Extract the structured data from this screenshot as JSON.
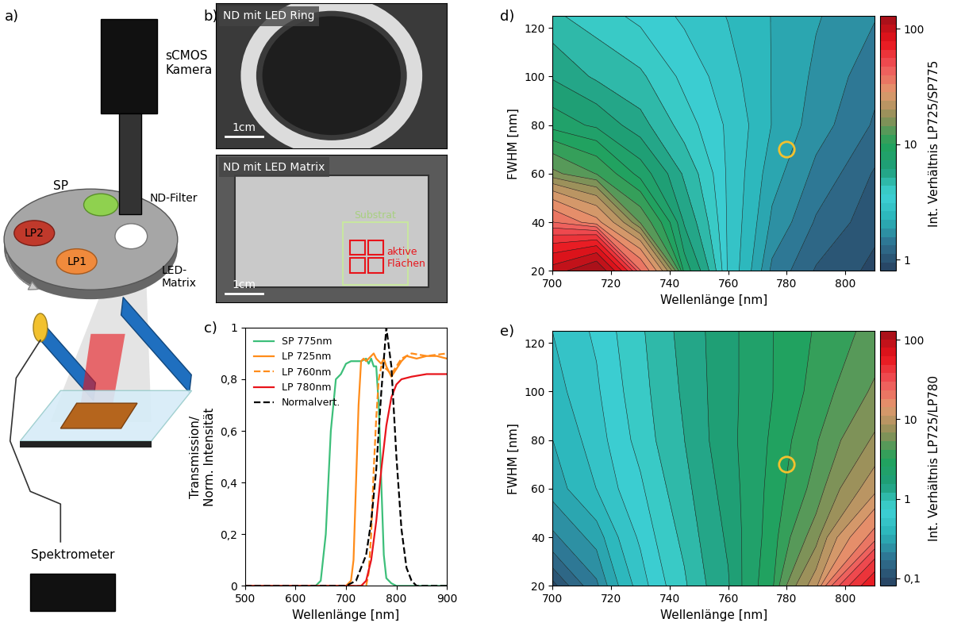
{
  "diagram": {
    "panel": "a)",
    "labels": {
      "camera": "sCMOS\nKamera",
      "sp": "SP",
      "lp2": "LP2",
      "lp1": "LP1",
      "nd": "ND-Filter",
      "led": "LED-\nMatrix",
      "spectrometer": "Spektrometer"
    }
  },
  "images": {
    "panel": "b)",
    "top": {
      "title": "ND mit LED Ring",
      "scale": "1cm"
    },
    "bottom": {
      "title": "ND mit LED Matrix",
      "scale": "1cm",
      "substrate": "Substrat",
      "active": "aktive\nFlächen"
    }
  },
  "chart_data": [
    {
      "panel": "c)",
      "type": "line",
      "xlabel": "Wellenlänge [nm]",
      "ylabel": "Transmission/\nNorm. Intensität",
      "xlim": [
        500,
        900
      ],
      "xticks": [
        500,
        600,
        700,
        800,
        900
      ],
      "ylim": [
        0,
        1
      ],
      "yticks": [
        0,
        {
          "value": 0.2,
          "label": "0,2"
        },
        {
          "value": 0.4,
          "label": "0,4"
        },
        {
          "value": 0.6,
          "label": "0,6"
        },
        {
          "value": 0.8,
          "label": "0,8"
        },
        1
      ],
      "legend": "upper left",
      "grid": false,
      "series": [
        {
          "name": "SP 775nm",
          "color": "#3dbf7a",
          "line_style": "solid",
          "x": [
            500,
            640,
            650,
            660,
            670,
            680,
            690,
            700,
            710,
            720,
            730,
            740,
            745,
            750,
            755,
            760,
            765,
            770,
            775,
            780,
            790,
            800,
            900
          ],
          "values": [
            0,
            0,
            0.02,
            0.2,
            0.6,
            0.8,
            0.82,
            0.86,
            0.87,
            0.87,
            0.87,
            0.88,
            0.86,
            0.88,
            0.85,
            0.85,
            0.7,
            0.4,
            0.12,
            0.03,
            0.01,
            0,
            0
          ]
        },
        {
          "name": "LP 725nm",
          "color": "#ff8c1a",
          "line_style": "solid",
          "x": [
            500,
            700,
            710,
            715,
            720,
            725,
            730,
            735,
            740,
            745,
            750,
            755,
            760,
            765,
            770,
            775,
            780,
            790,
            800,
            810,
            820,
            840,
            860,
            880,
            900
          ],
          "values": [
            0,
            0,
            0.02,
            0.1,
            0.4,
            0.7,
            0.87,
            0.88,
            0.87,
            0.88,
            0.89,
            0.9,
            0.88,
            0.87,
            0.86,
            0.88,
            0.85,
            0.81,
            0.84,
            0.87,
            0.89,
            0.88,
            0.89,
            0.89,
            0.88
          ]
        },
        {
          "name": "LP 760nm",
          "color": "#ff8c1a",
          "line_style": "dashed",
          "x": [
            500,
            740,
            745,
            750,
            755,
            760,
            765,
            770,
            780,
            790,
            800,
            810,
            830,
            860,
            900
          ],
          "values": [
            0,
            0,
            0.05,
            0.2,
            0.45,
            0.65,
            0.8,
            0.85,
            0.84,
            0.82,
            0.85,
            0.88,
            0.9,
            0.89,
            0.9
          ]
        },
        {
          "name": "LP 780nm",
          "color": "#e8141b",
          "line_style": "solid",
          "x": [
            500,
            730,
            740,
            750,
            760,
            770,
            780,
            790,
            800,
            810,
            830,
            860,
            900
          ],
          "values": [
            0,
            0,
            0.02,
            0.1,
            0.25,
            0.45,
            0.62,
            0.73,
            0.78,
            0.8,
            0.81,
            0.82,
            0.82
          ]
        },
        {
          "name": "Normalvert.",
          "color": "#000000",
          "line_style": "dashed",
          "x": [
            500,
            700,
            720,
            740,
            750,
            760,
            770,
            780,
            790,
            800,
            810,
            820,
            830,
            840,
            900
          ],
          "values": [
            0,
            0,
            0.02,
            0.12,
            0.25,
            0.45,
            0.75,
            1.0,
            0.85,
            0.5,
            0.22,
            0.07,
            0.02,
            0,
            0
          ]
        }
      ]
    },
    {
      "panel": "d)",
      "type": "contour",
      "xlabel": "Wellenlänge [nm]",
      "ylabel": "FWHM [nm]",
      "colorbar_label": "Int. Verhältnis LP725/SP775",
      "xlim": [
        700,
        810
      ],
      "xticks": [
        700,
        720,
        740,
        760,
        780,
        800
      ],
      "ylim": [
        20,
        125
      ],
      "yticks": [
        20,
        40,
        60,
        80,
        100,
        120
      ],
      "log": "colorbar",
      "colorbar_range": [
        0.8,
        130
      ],
      "colorbar_ticks": [
        1,
        10,
        100
      ],
      "x": [
        700,
        715,
        730,
        745,
        760,
        775,
        790,
        810
      ],
      "y": [
        20,
        40,
        60,
        80,
        100,
        125
      ],
      "cells": [
        [
          100,
          130,
          40,
          8,
          3,
          1.5,
          1.1,
          0.9
        ],
        [
          40,
          30,
          14,
          6,
          3,
          1.8,
          1.3,
          1.0
        ],
        [
          15,
          12,
          8,
          5,
          3,
          2.0,
          1.5,
          1.1
        ],
        [
          8,
          7,
          5.5,
          4,
          3,
          2.2,
          1.7,
          1.3
        ],
        [
          6,
          5,
          4.5,
          3.5,
          2.8,
          2.2,
          1.8,
          1.4
        ],
        [
          4.5,
          4,
          3.5,
          3,
          2.6,
          2.2,
          1.9,
          1.6
        ]
      ],
      "highlight": {
        "x": 780,
        "y": 70,
        "color": "#f2c12e"
      }
    },
    {
      "panel": "e)",
      "type": "contour",
      "xlabel": "Wellenlänge [nm]",
      "ylabel": "FWHM [nm]",
      "colorbar_label": "Int. Verhältnis LP725/LP780",
      "xlim": [
        700,
        810
      ],
      "xticks": [
        700,
        720,
        740,
        760,
        780,
        800
      ],
      "ylim": [
        20,
        125
      ],
      "yticks": [
        20,
        40,
        60,
        80,
        100,
        120
      ],
      "log": "colorbar",
      "colorbar_range": [
        0.08,
        130
      ],
      "colorbar_ticks": [
        {
          "value": 0.1,
          "label": "0,1"
        },
        1,
        10,
        100
      ],
      "x": [
        700,
        715,
        730,
        745,
        760,
        775,
        790,
        810
      ],
      "y": [
        20,
        40,
        60,
        80,
        100,
        125
      ],
      "cells": [
        [
          0.09,
          0.2,
          0.5,
          0.9,
          1.5,
          3,
          10,
          60
        ],
        [
          0.2,
          0.3,
          0.6,
          1.0,
          1.6,
          2.8,
          6,
          20
        ],
        [
          0.3,
          0.45,
          0.7,
          1.1,
          1.7,
          2.7,
          4.5,
          10
        ],
        [
          0.35,
          0.5,
          0.8,
          1.2,
          1.8,
          2.6,
          4,
          7
        ],
        [
          0.4,
          0.55,
          0.85,
          1.25,
          1.8,
          2.5,
          3.5,
          5.5
        ],
        [
          0.45,
          0.6,
          0.9,
          1.3,
          1.8,
          2.5,
          3.3,
          4.5
        ]
      ],
      "highlight": {
        "x": 780,
        "y": 70,
        "color": "#f2c12e"
      }
    }
  ]
}
